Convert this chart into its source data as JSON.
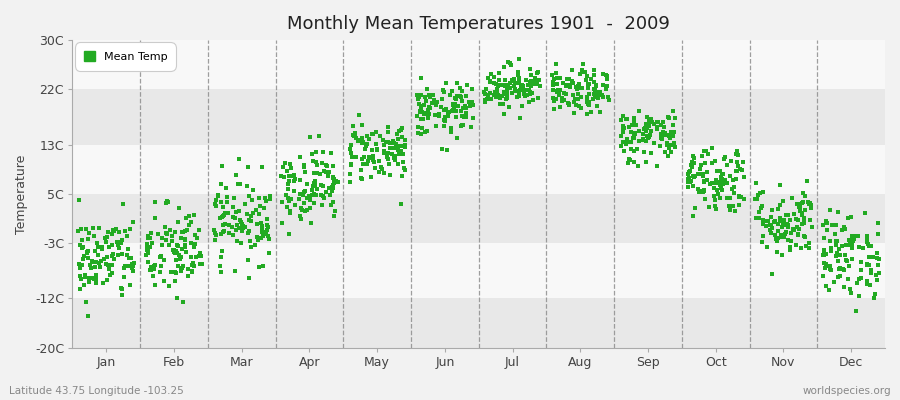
{
  "title": "Monthly Mean Temperatures 1901  -  2009",
  "ylabel": "Temperature",
  "xlabel_labels": [
    "Jan",
    "Feb",
    "Mar",
    "Apr",
    "May",
    "Jun",
    "Jul",
    "Aug",
    "Sep",
    "Oct",
    "Nov",
    "Dec"
  ],
  "ytick_labels": [
    "-20C",
    "-12C",
    "-3C",
    "5C",
    "13C",
    "22C",
    "30C"
  ],
  "ytick_values": [
    -20,
    -12,
    -3,
    5,
    13,
    22,
    30
  ],
  "ylim": [
    -20,
    30
  ],
  "background_color": "#f2f2f2",
  "plot_bg_color": "#f2f2f2",
  "band_color_light": "#f8f8f8",
  "band_color_dark": "#e8e8e8",
  "dot_color": "#22aa22",
  "dot_size": 5,
  "legend_label": "Mean Temp",
  "footer_left": "Latitude 43.75 Longitude -103.25",
  "footer_right": "worldspecies.org",
  "n_years": 109,
  "monthly_means": [
    -5.5,
    -4.5,
    1.0,
    6.5,
    12.0,
    18.5,
    22.5,
    21.5,
    14.5,
    7.5,
    0.5,
    -5.0
  ],
  "monthly_stds": [
    3.5,
    3.8,
    3.5,
    3.0,
    2.5,
    2.2,
    1.8,
    1.8,
    2.2,
    2.8,
    3.0,
    3.5
  ],
  "seed": 42
}
